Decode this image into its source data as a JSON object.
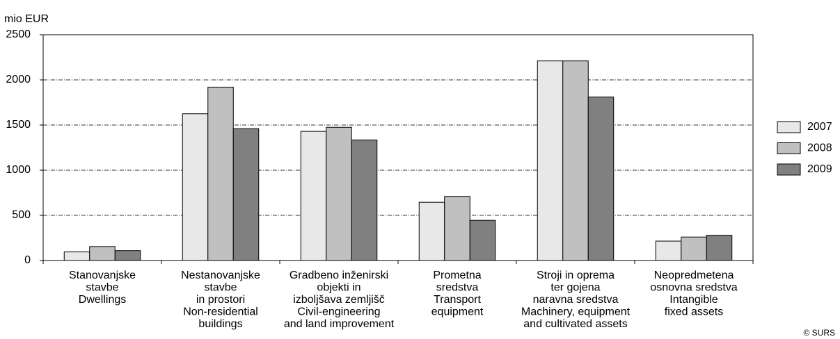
{
  "chart_data": {
    "type": "bar",
    "y_label": "mio EUR",
    "credit": "© SURS",
    "categories": [
      [
        "Stanovanjske",
        "stavbe",
        "Dwellings"
      ],
      [
        "Nestanovanjske",
        "stavbe",
        "in prostori",
        "Non-residential",
        "buildings"
      ],
      [
        "Gradbeno inženirski",
        "objekti in",
        "izboljšava zemljišč",
        "Civil-engineering",
        "and land improvement"
      ],
      [
        "Prometna",
        "sredstva",
        "Transport",
        "equipment"
      ],
      [
        "Stroji in oprema",
        "ter gojena",
        "naravna sredstva",
        "Machinery, equipment",
        "and cultivated assets"
      ],
      [
        "Neopredmetena",
        "osnovna sredstva",
        "Intangible",
        "fixed assets"
      ]
    ],
    "series": [
      {
        "name": "2007",
        "color": "#e8e8e8",
        "values": [
          95,
          1625,
          1430,
          645,
          2210,
          215
        ]
      },
      {
        "name": "2008",
        "color": "#c0c0c0",
        "values": [
          155,
          1920,
          1475,
          710,
          2210,
          260
        ]
      },
      {
        "name": "2009",
        "color": "#808080",
        "values": [
          110,
          1460,
          1335,
          445,
          1810,
          280
        ]
      }
    ],
    "ylim": [
      0,
      2500
    ],
    "yticks": [
      0,
      500,
      1000,
      1500,
      2000,
      2500
    ],
    "grid": true,
    "legend": "right"
  }
}
